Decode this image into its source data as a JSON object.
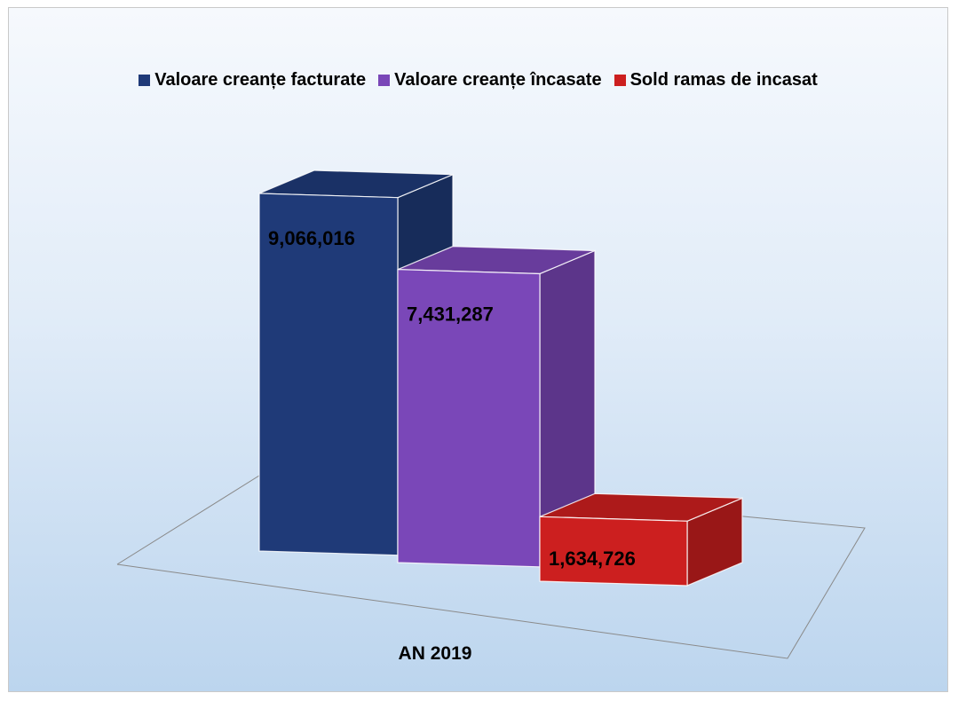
{
  "chart_data": {
    "type": "bar",
    "categories": [
      "AN 2019"
    ],
    "series": [
      {
        "name": "Valoare creanțe facturate",
        "values": [
          9066016
        ],
        "label": "9,066,016",
        "color": "#1f3a78"
      },
      {
        "name": "Valoare creanțe încasate",
        "values": [
          7431287
        ],
        "label": "7,431,287",
        "color": "#7a47b8"
      },
      {
        "name": "Sold ramas de incasat",
        "values": [
          1634726
        ],
        "label": "1,634,726",
        "color": "#cc1f1f"
      }
    ],
    "legend_position": "top",
    "grid": false,
    "style": "3d-column"
  }
}
